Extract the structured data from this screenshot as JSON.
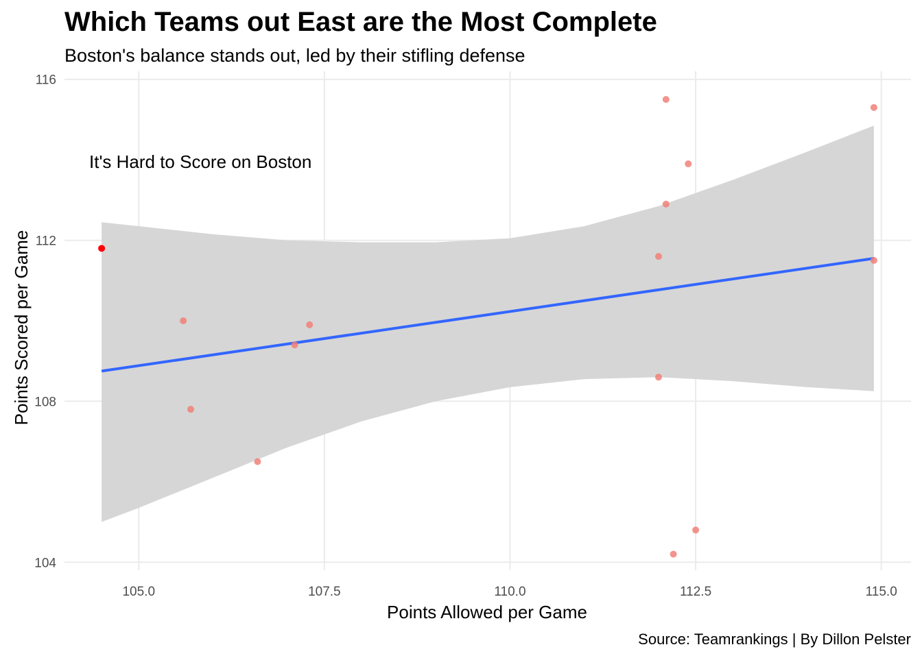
{
  "chart_data": {
    "type": "scatter",
    "title": "Which Teams out East are the Most Complete",
    "subtitle": "Boston's balance stands out, led by their stifling defense",
    "xlabel": "Points Allowed per Game",
    "ylabel": "Points Scored per Game",
    "caption": "Source: Teamrankings | By Dillon Pelster",
    "annotation": "It's Hard to Score on Boston",
    "xlim": [
      104.0,
      115.4
    ],
    "ylim": [
      103.8,
      116.2
    ],
    "x_ticks": [
      105.0,
      107.5,
      110.0,
      112.5,
      115.0
    ],
    "x_tick_labels": [
      "105.0",
      "107.5",
      "110.0",
      "112.5",
      "115.0"
    ],
    "y_ticks": [
      104,
      108,
      112,
      116
    ],
    "y_tick_labels": [
      "104",
      "108",
      "112",
      "116"
    ],
    "grid": true,
    "legend": "none",
    "points": [
      {
        "x": 104.5,
        "y": 111.8,
        "highlight": true
      },
      {
        "x": 105.6,
        "y": 110.0
      },
      {
        "x": 105.7,
        "y": 107.8
      },
      {
        "x": 106.6,
        "y": 106.5
      },
      {
        "x": 107.1,
        "y": 109.4
      },
      {
        "x": 107.3,
        "y": 109.9
      },
      {
        "x": 112.0,
        "y": 111.6
      },
      {
        "x": 112.0,
        "y": 108.6
      },
      {
        "x": 112.1,
        "y": 115.5
      },
      {
        "x": 112.1,
        "y": 112.9
      },
      {
        "x": 112.2,
        "y": 104.2
      },
      {
        "x": 112.4,
        "y": 113.9
      },
      {
        "x": 112.5,
        "y": 104.8
      },
      {
        "x": 114.9,
        "y": 115.3
      },
      {
        "x": 114.9,
        "y": 111.5
      }
    ],
    "trend_line": {
      "x": [
        104.5,
        114.9
      ],
      "y": [
        108.75,
        111.55
      ]
    },
    "confidence_band": {
      "x": [
        104.5,
        105.0,
        106.0,
        107.0,
        108.0,
        109.0,
        110.0,
        111.0,
        112.0,
        113.0,
        114.0,
        114.9
      ],
      "upper": [
        112.45,
        112.35,
        112.15,
        112.0,
        111.95,
        111.95,
        112.05,
        112.35,
        112.85,
        113.5,
        114.2,
        114.85
      ],
      "lower": [
        105.0,
        105.35,
        106.1,
        106.85,
        107.5,
        108.0,
        108.35,
        108.55,
        108.6,
        108.5,
        108.35,
        108.25
      ]
    },
    "colors": {
      "point": "#f08078",
      "highlight_point": "#ff0000",
      "trend_line": "#3366ff",
      "band": "#d6d6d6",
      "grid": "#ebebeb"
    }
  }
}
